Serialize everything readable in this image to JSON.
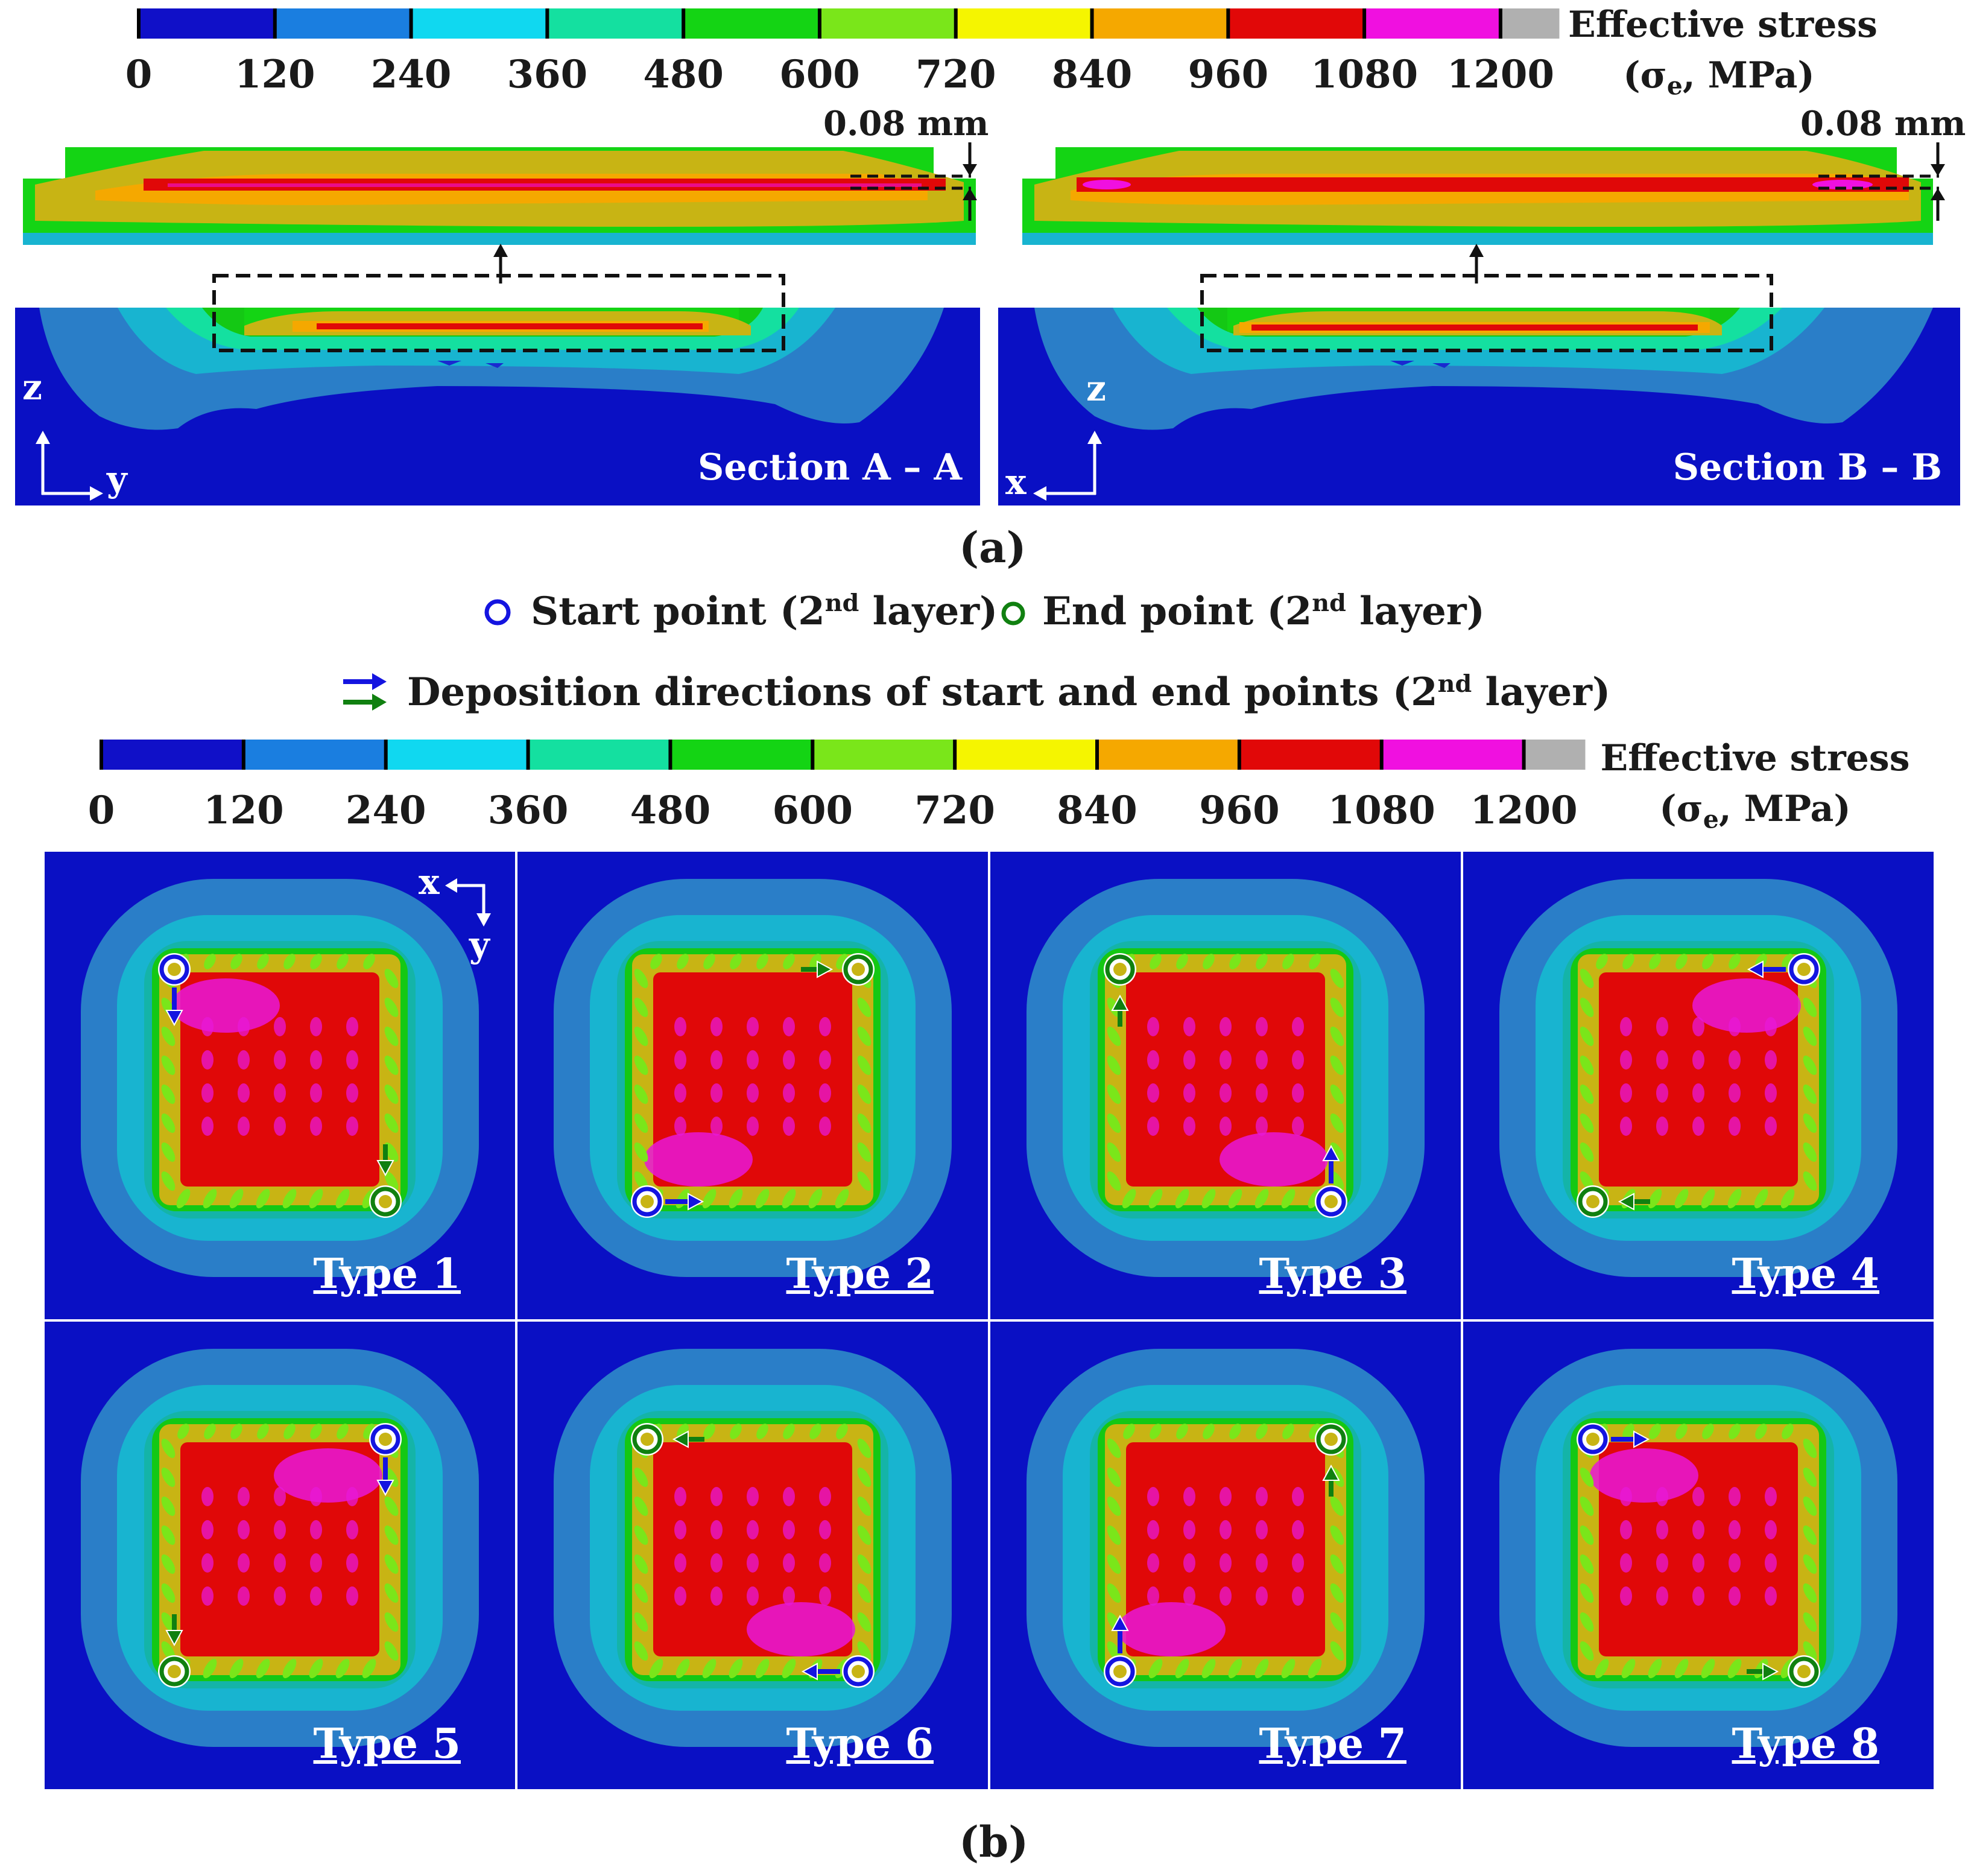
{
  "palette": {
    "levels": [
      "#1010c8",
      "#1a7ee0",
      "#10d8f0",
      "#14e0a0",
      "#14d414",
      "#7ae61a",
      "#f5f500",
      "#f5a800",
      "#e10808",
      "#f010e0",
      "#b0b0b0"
    ],
    "substrate": "#0a10c4",
    "outer_band": "#2a7ec8",
    "mid_band": "#18b4d0",
    "green_ring": "#14c814",
    "yellow_ring": "#c8b414",
    "red_core": "#e00808",
    "magenta": "#e818d8",
    "start_marker": "#1414e0",
    "end_marker": "#108010"
  },
  "colorbar_top": {
    "ticks": [
      "0",
      "120",
      "240",
      "360",
      "480",
      "600",
      "720",
      "840",
      "960",
      "1080",
      "1200"
    ],
    "title_line1": "Effective stress",
    "title_line2_prefix": "(σ",
    "title_line2_sub": "e",
    "title_line2_suffix": ", MPa)"
  },
  "panel_a": {
    "dimension_left": "0.08 mm",
    "dimension_right": "0.08 mm",
    "section_left": "Section A – A",
    "section_right": "Section B – B",
    "axes_left": {
      "vertical": "z",
      "horizontal": "y"
    },
    "axes_right": {
      "vertical": "z",
      "horizontal": "x"
    },
    "caption": "(a)"
  },
  "legend": {
    "start_text": "Start point (2",
    "start_sup": "nd",
    "start_suffix": " layer)",
    "end_text": "End point (2",
    "end_sup": "nd",
    "end_suffix": " layer)",
    "direction_text": "Deposition directions of start and end points (2",
    "direction_sup": "nd",
    "direction_suffix": " layer)"
  },
  "colorbar_bottom": {
    "ticks": [
      "0",
      "120",
      "240",
      "360",
      "480",
      "600",
      "720",
      "840",
      "960",
      "1080",
      "1200"
    ],
    "title_line1": "Effective stress",
    "title_line2_prefix": "(σ",
    "title_line2_sub": "e",
    "title_line2_suffix": ", MPa)"
  },
  "panel_b": {
    "axes": {
      "horizontal": "x",
      "vertical": "y"
    },
    "types": [
      {
        "label": "Type 1",
        "start_corner": "top-left",
        "start_dir": "down",
        "end_corner": "bottom-right",
        "end_dir": "down"
      },
      {
        "label": "Type 2",
        "start_corner": "bottom-left",
        "start_dir": "right",
        "end_corner": "top-right",
        "end_dir": "right"
      },
      {
        "label": "Type 3",
        "start_corner": "bottom-right",
        "start_dir": "up",
        "end_corner": "top-left",
        "end_dir": "up"
      },
      {
        "label": "Type 4",
        "start_corner": "top-right",
        "start_dir": "left",
        "end_corner": "bottom-left",
        "end_dir": "left"
      },
      {
        "label": "Type 5",
        "start_corner": "top-right",
        "start_dir": "down",
        "end_corner": "bottom-left",
        "end_dir": "down"
      },
      {
        "label": "Type 6",
        "start_corner": "bottom-right",
        "start_dir": "left",
        "end_corner": "top-left",
        "end_dir": "left"
      },
      {
        "label": "Type 7",
        "start_corner": "bottom-left",
        "start_dir": "up",
        "end_corner": "top-right",
        "end_dir": "up"
      },
      {
        "label": "Type 8",
        "start_corner": "top-left",
        "start_dir": "right",
        "end_corner": "bottom-right",
        "end_dir": "right"
      }
    ],
    "caption": "(b)"
  }
}
